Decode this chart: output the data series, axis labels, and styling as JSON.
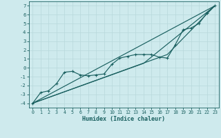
{
  "xlabel": "Humidex (Indice chaleur)",
  "bg_color": "#ceeaed",
  "grid_color": "#b8d8db",
  "line_color": "#1a6060",
  "xlim": [
    -0.5,
    23.5
  ],
  "ylim": [
    -4.5,
    7.5
  ],
  "xticks": [
    0,
    1,
    2,
    3,
    4,
    5,
    6,
    7,
    8,
    9,
    10,
    11,
    12,
    13,
    14,
    15,
    16,
    17,
    18,
    19,
    20,
    21,
    22,
    23
  ],
  "yticks": [
    -4,
    -3,
    -2,
    -1,
    0,
    1,
    2,
    3,
    4,
    5,
    6,
    7
  ],
  "line1_x": [
    0,
    1,
    2,
    3,
    4,
    5,
    6,
    7,
    8,
    9,
    10,
    11,
    12,
    13,
    14,
    15,
    16,
    17,
    18,
    19,
    20,
    21,
    22,
    23
  ],
  "line1_y": [
    -4.0,
    -2.8,
    -2.6,
    -1.8,
    -0.5,
    -0.4,
    -0.8,
    -0.9,
    -0.8,
    -0.7,
    0.4,
    1.1,
    1.3,
    1.5,
    1.5,
    1.5,
    1.2,
    1.1,
    2.6,
    4.3,
    4.5,
    5.0,
    6.2,
    7.0
  ],
  "line2_x": [
    0,
    23
  ],
  "line2_y": [
    -4.0,
    7.0
  ],
  "line3_x": [
    0,
    14,
    23
  ],
  "line3_y": [
    -4.0,
    0.5,
    7.0
  ],
  "line4_x": [
    0,
    17,
    23
  ],
  "line4_y": [
    -4.0,
    1.5,
    7.0
  ]
}
